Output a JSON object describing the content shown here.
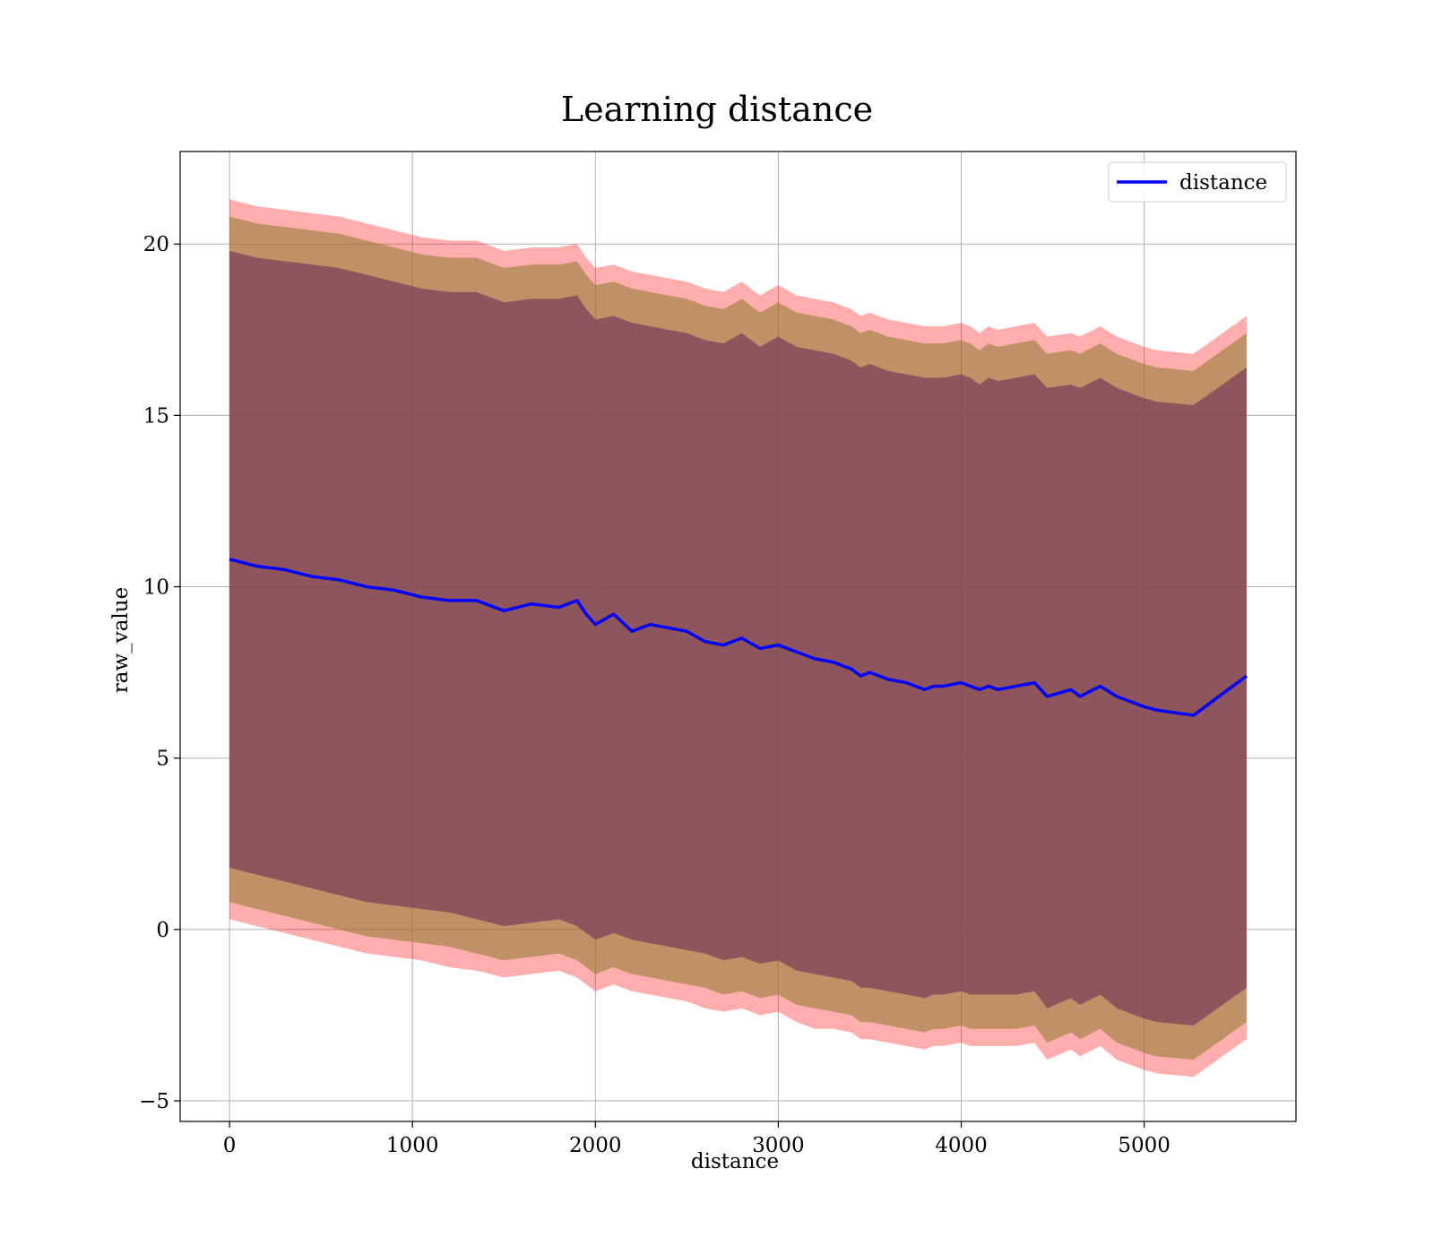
{
  "chart_data": {
    "type": "area",
    "title": "Learning distance",
    "xlabel": "distance",
    "ylabel": "raw_value",
    "xlim": [
      -270,
      5830
    ],
    "ylim": [
      -5.6,
      22.7
    ],
    "xticks": [
      0,
      1000,
      2000,
      3000,
      4000,
      5000
    ],
    "yticks": [
      -5,
      0,
      5,
      10,
      15,
      20
    ],
    "xtick_labels": [
      "0",
      "1000",
      "2000",
      "3000",
      "4000",
      "5000"
    ],
    "ytick_labels": [
      "−5",
      "0",
      "5",
      "10",
      "15",
      "20"
    ],
    "grid": true,
    "legend": {
      "position": "top-right",
      "entries": [
        "distance"
      ]
    },
    "colors": {
      "line": "#0000ff",
      "band_outer": "#ff0000",
      "band_middle": "#8c7a2e",
      "band_inner": "#7a3e5a",
      "grid": "#b0b0b0"
    },
    "x": [
      0,
      150,
      300,
      450,
      600,
      750,
      900,
      1050,
      1200,
      1350,
      1500,
      1650,
      1800,
      1900,
      1950,
      2000,
      2100,
      2200,
      2300,
      2400,
      2500,
      2600,
      2700,
      2800,
      2900,
      3000,
      3100,
      3200,
      3300,
      3400,
      3450,
      3500,
      3600,
      3700,
      3800,
      3850,
      3900,
      4000,
      4050,
      4100,
      4150,
      4200,
      4300,
      4400,
      4470,
      4600,
      4650,
      4760,
      4850,
      5000,
      5070,
      5270,
      5560
    ],
    "series": [
      {
        "name": "distance",
        "values": [
          10.8,
          10.6,
          10.5,
          10.3,
          10.2,
          10.0,
          9.9,
          9.7,
          9.6,
          9.6,
          9.3,
          9.5,
          9.4,
          9.6,
          9.2,
          8.9,
          9.2,
          8.7,
          8.9,
          8.8,
          8.7,
          8.4,
          8.3,
          8.5,
          8.2,
          8.3,
          8.1,
          7.9,
          7.8,
          7.6,
          7.4,
          7.5,
          7.3,
          7.2,
          7.0,
          7.1,
          7.1,
          7.2,
          7.1,
          7.0,
          7.1,
          7.0,
          7.1,
          7.2,
          6.8,
          7.0,
          6.8,
          7.1,
          6.8,
          6.5,
          6.4,
          6.25,
          7.4
        ]
      }
    ],
    "bands": [
      {
        "name": "outer",
        "lower": [
          0.3,
          0.1,
          -0.1,
          -0.3,
          -0.5,
          -0.7,
          -0.8,
          -0.9,
          -1.1,
          -1.2,
          -1.4,
          -1.3,
          -1.2,
          -1.4,
          -1.6,
          -1.8,
          -1.6,
          -1.8,
          -1.9,
          -2.0,
          -2.1,
          -2.3,
          -2.4,
          -2.3,
          -2.5,
          -2.4,
          -2.7,
          -2.9,
          -2.9,
          -3.0,
          -3.2,
          -3.2,
          -3.3,
          -3.4,
          -3.5,
          -3.4,
          -3.4,
          -3.3,
          -3.4,
          -3.4,
          -3.4,
          -3.4,
          -3.4,
          -3.3,
          -3.8,
          -3.5,
          -3.7,
          -3.4,
          -3.8,
          -4.1,
          -4.2,
          -4.3,
          -3.2
        ],
        "upper": [
          21.3,
          21.1,
          21.0,
          20.9,
          20.8,
          20.6,
          20.4,
          20.2,
          20.1,
          20.1,
          19.8,
          19.9,
          19.9,
          20.0,
          19.6,
          19.3,
          19.4,
          19.2,
          19.1,
          19.0,
          18.9,
          18.7,
          18.6,
          18.9,
          18.5,
          18.8,
          18.5,
          18.4,
          18.3,
          18.1,
          17.9,
          18.0,
          17.8,
          17.7,
          17.6,
          17.6,
          17.6,
          17.7,
          17.6,
          17.4,
          17.6,
          17.5,
          17.6,
          17.7,
          17.3,
          17.4,
          17.3,
          17.6,
          17.3,
          17.0,
          16.9,
          16.8,
          17.9
        ]
      },
      {
        "name": "middle",
        "lower": [
          0.8,
          0.6,
          0.4,
          0.2,
          0.0,
          -0.2,
          -0.3,
          -0.4,
          -0.5,
          -0.7,
          -0.9,
          -0.8,
          -0.7,
          -0.9,
          -1.1,
          -1.3,
          -1.1,
          -1.3,
          -1.4,
          -1.5,
          -1.6,
          -1.7,
          -1.9,
          -1.8,
          -2.0,
          -1.9,
          -2.2,
          -2.3,
          -2.4,
          -2.5,
          -2.7,
          -2.7,
          -2.8,
          -2.9,
          -3.0,
          -2.9,
          -2.9,
          -2.8,
          -2.9,
          -2.9,
          -2.9,
          -2.9,
          -2.9,
          -2.8,
          -3.3,
          -3.0,
          -3.2,
          -2.9,
          -3.3,
          -3.6,
          -3.7,
          -3.8,
          -2.7
        ],
        "upper": [
          20.8,
          20.6,
          20.5,
          20.4,
          20.3,
          20.1,
          19.9,
          19.7,
          19.6,
          19.6,
          19.3,
          19.4,
          19.4,
          19.5,
          19.1,
          18.8,
          18.9,
          18.7,
          18.6,
          18.5,
          18.4,
          18.2,
          18.1,
          18.4,
          18.0,
          18.3,
          18.0,
          17.9,
          17.8,
          17.6,
          17.4,
          17.5,
          17.3,
          17.2,
          17.1,
          17.1,
          17.1,
          17.2,
          17.1,
          16.9,
          17.1,
          17.0,
          17.1,
          17.2,
          16.8,
          16.9,
          16.8,
          17.1,
          16.8,
          16.5,
          16.4,
          16.3,
          17.4
        ]
      },
      {
        "name": "inner",
        "lower": [
          1.8,
          1.6,
          1.4,
          1.2,
          1.0,
          0.8,
          0.7,
          0.6,
          0.5,
          0.3,
          0.1,
          0.2,
          0.3,
          0.1,
          -0.1,
          -0.3,
          -0.1,
          -0.3,
          -0.4,
          -0.5,
          -0.6,
          -0.7,
          -0.9,
          -0.8,
          -1.0,
          -0.9,
          -1.2,
          -1.3,
          -1.4,
          -1.5,
          -1.7,
          -1.7,
          -1.8,
          -1.9,
          -2.0,
          -1.9,
          -1.9,
          -1.8,
          -1.9,
          -1.9,
          -1.9,
          -1.9,
          -1.9,
          -1.8,
          -2.3,
          -2.0,
          -2.2,
          -1.9,
          -2.3,
          -2.6,
          -2.7,
          -2.8,
          -1.7
        ],
        "upper": [
          19.8,
          19.6,
          19.5,
          19.4,
          19.3,
          19.1,
          18.9,
          18.7,
          18.6,
          18.6,
          18.3,
          18.4,
          18.4,
          18.5,
          18.1,
          17.8,
          17.9,
          17.7,
          17.6,
          17.5,
          17.4,
          17.2,
          17.1,
          17.4,
          17.0,
          17.3,
          17.0,
          16.9,
          16.8,
          16.6,
          16.4,
          16.5,
          16.3,
          16.2,
          16.1,
          16.1,
          16.1,
          16.2,
          16.1,
          15.9,
          16.1,
          16.0,
          16.1,
          16.2,
          15.8,
          15.9,
          15.8,
          16.1,
          15.8,
          15.5,
          15.4,
          15.3,
          16.4
        ]
      }
    ]
  }
}
